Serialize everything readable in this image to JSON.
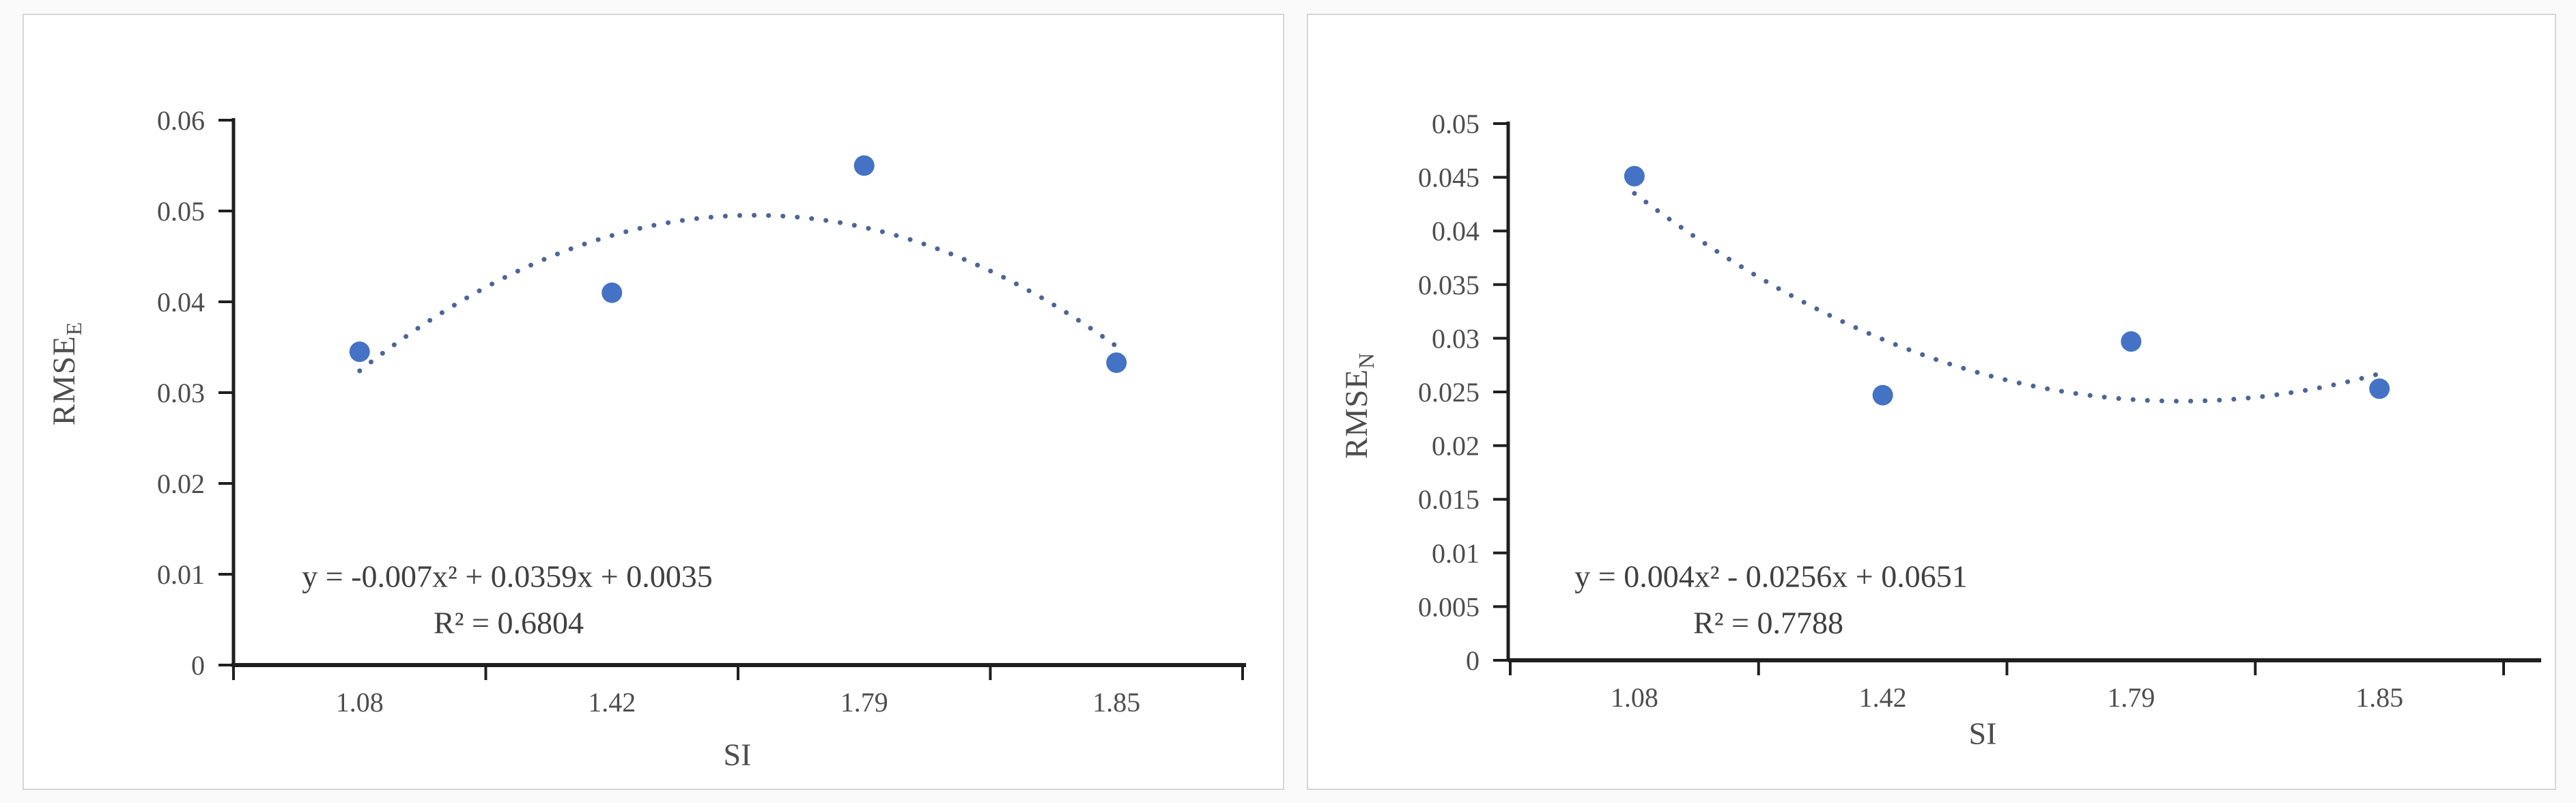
{
  "page": {
    "background": "#fafafa",
    "panel_border_color": "#d6d6d6"
  },
  "chart_data": [
    {
      "type": "scatter",
      "title": "",
      "xlabel": "SI",
      "ylabel_base": "RMSE",
      "ylabel_sub": "E",
      "categories": [
        "1.08",
        "1.42",
        "1.79",
        "1.85"
      ],
      "values": [
        0.0345,
        0.041,
        0.055,
        0.0333
      ],
      "ylim": [
        0,
        0.06
      ],
      "ytick_step": 0.01,
      "grid": false,
      "legend": "none",
      "trendline": {
        "type": "polynomial",
        "order": 2,
        "a": -0.007,
        "b": 0.0359,
        "c": 0.0035,
        "equation": "y = -0.007x² + 0.0359x + 0.0035",
        "r_squared": "R² = 0.6804",
        "style": "dotted"
      },
      "marker_color": "#4472C4",
      "trend_color": "#4d6596",
      "axis_color": "#1f1f1f",
      "text_color": "#4d4d4d"
    },
    {
      "type": "scatter",
      "title": "",
      "xlabel": "SI",
      "ylabel_base": "RMSE",
      "ylabel_sub": "N",
      "categories": [
        "1.08",
        "1.42",
        "1.79",
        "1.85"
      ],
      "values": [
        0.0451,
        0.0247,
        0.0297,
        0.0253
      ],
      "ylim": [
        0,
        0.05
      ],
      "ytick_step": 0.005,
      "grid": false,
      "legend": "none",
      "trendline": {
        "type": "polynomial",
        "order": 2,
        "a": 0.004,
        "b": -0.0256,
        "c": 0.0651,
        "equation": "y = 0.004x² - 0.0256x + 0.0651",
        "r_squared": "R² = 0.7788",
        "style": "dotted"
      },
      "marker_color": "#4472C4",
      "trend_color": "#4d6596",
      "axis_color": "#1f1f1f",
      "text_color": "#4d4d4d"
    }
  ]
}
